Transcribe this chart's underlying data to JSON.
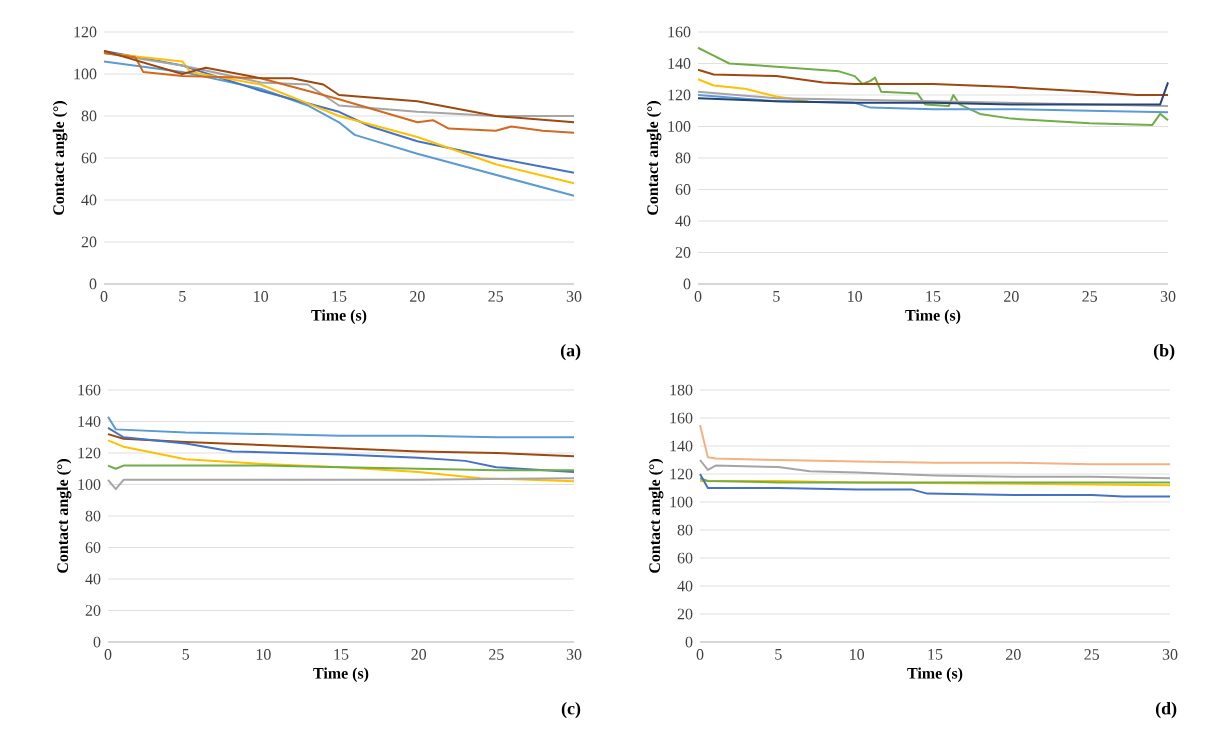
{
  "chart_data": [
    {
      "type": "line",
      "xlabel": "Time (s)",
      "ylabel": "Contact angle (°)",
      "annotations": [
        "(a)"
      ],
      "xlim": [
        0,
        30
      ],
      "ylim": [
        0,
        120
      ],
      "xticks": [
        0,
        5,
        10,
        15,
        20,
        25,
        30
      ],
      "yticks": [
        0,
        20,
        40,
        60,
        80,
        100,
        120
      ],
      "grid": "y",
      "series": [
        {
          "color": "#5b9bd5",
          "x": [
            0,
            5,
            10,
            13,
            15,
            16,
            20,
            25,
            30
          ],
          "values": [
            106,
            101,
            93,
            85,
            77,
            71,
            62,
            52,
            42
          ]
        },
        {
          "color": "#4472c4",
          "x": [
            0,
            5,
            10,
            15,
            17,
            20,
            25,
            30
          ],
          "values": [
            111,
            104,
            92,
            82,
            75,
            68,
            60,
            53
          ]
        },
        {
          "color": "#ffc000",
          "x": [
            0,
            5,
            5.5,
            10,
            13,
            15,
            20,
            25,
            30
          ],
          "values": [
            110,
            106,
            101,
            95,
            86,
            80,
            70,
            57,
            48
          ]
        },
        {
          "color": "#a5a5a5",
          "x": [
            0,
            5,
            10,
            13,
            14,
            15,
            20,
            25,
            30
          ],
          "values": [
            110,
            104,
            96,
            95,
            90,
            85,
            82,
            80,
            80
          ]
        },
        {
          "color": "#d2691e",
          "x": [
            0,
            2,
            2.5,
            5,
            10,
            15,
            20,
            21,
            22,
            25,
            26,
            28,
            30
          ],
          "values": [
            110,
            108,
            101,
            99,
            98,
            88,
            77,
            78,
            74,
            73,
            75,
            73,
            72
          ]
        },
        {
          "color": "#9e480e",
          "x": [
            0,
            5,
            6.5,
            10,
            12,
            14,
            15,
            20,
            25,
            30
          ],
          "values": [
            111,
            100,
            103,
            98,
            98,
            95,
            90,
            87,
            80,
            77
          ]
        }
      ]
    },
    {
      "type": "line",
      "xlabel": "Time (s)",
      "ylabel": "Contact angle (°)",
      "annotations": [
        "(b)"
      ],
      "xlim": [
        0,
        30
      ],
      "ylim": [
        0,
        160
      ],
      "xticks": [
        0,
        5,
        10,
        15,
        20,
        25,
        30
      ],
      "yticks": [
        0,
        20,
        40,
        60,
        80,
        100,
        120,
        140,
        160
      ],
      "grid": "y",
      "series": [
        {
          "color": "#70ad47",
          "x": [
            0,
            1,
            2,
            5,
            9,
            10,
            10.5,
            11,
            11.3,
            11.7,
            14,
            14.5,
            16,
            16.3,
            16.7,
            18,
            20,
            25,
            29,
            29.5,
            30
          ],
          "values": [
            150,
            145,
            140,
            138,
            135,
            132,
            127,
            129,
            131,
            122,
            121,
            114,
            113,
            120,
            114,
            108,
            105,
            102,
            101,
            108,
            104
          ]
        },
        {
          "color": "#9e480e",
          "x": [
            0,
            1,
            5,
            8,
            10,
            15,
            20,
            25,
            28,
            30
          ],
          "values": [
            136,
            133,
            132,
            128,
            127,
            127,
            125,
            122,
            120,
            120
          ]
        },
        {
          "color": "#ffc000",
          "x": [
            0,
            1,
            3,
            5,
            7
          ],
          "values": [
            130,
            126,
            124,
            119,
            116
          ]
        },
        {
          "color": "#a5a5a5",
          "x": [
            0,
            5,
            15,
            30
          ],
          "values": [
            122,
            118,
            116,
            113
          ]
        },
        {
          "color": "#5b9bd5",
          "x": [
            0,
            5,
            10,
            11,
            15,
            20,
            25,
            30
          ],
          "values": [
            120,
            116,
            115,
            112,
            111,
            111,
            110,
            109
          ]
        },
        {
          "color": "#264478",
          "x": [
            0,
            5,
            10,
            15,
            20,
            29.5,
            30
          ],
          "values": [
            118,
            116,
            115,
            115,
            114,
            114,
            128
          ]
        }
      ]
    },
    {
      "type": "line",
      "xlabel": "Time (s)",
      "ylabel": "Contact angle (°)",
      "annotations": [
        "(c)"
      ],
      "xlim": [
        0,
        30
      ],
      "ylim": [
        0,
        160
      ],
      "xticks": [
        0,
        5,
        10,
        15,
        20,
        25,
        30
      ],
      "yticks": [
        0,
        20,
        40,
        60,
        80,
        100,
        120,
        140,
        160
      ],
      "grid": "y",
      "series": [
        {
          "color": "#5b9bd5",
          "x": [
            0,
            0.5,
            5,
            10,
            15,
            20,
            25,
            30
          ],
          "values": [
            143,
            135,
            133,
            132,
            131,
            131,
            130,
            130
          ]
        },
        {
          "color": "#9e480e",
          "x": [
            0,
            1,
            5,
            10,
            15,
            20,
            25,
            30
          ],
          "values": [
            132,
            129,
            127,
            125,
            123,
            121,
            120,
            118
          ]
        },
        {
          "color": "#4472c4",
          "x": [
            0,
            1,
            5,
            8,
            15,
            20,
            23,
            25,
            30
          ],
          "values": [
            136,
            130,
            126,
            121,
            119,
            117,
            115,
            111,
            108
          ]
        },
        {
          "color": "#ffc000",
          "x": [
            0,
            1,
            3,
            5,
            10,
            15,
            20,
            24,
            30
          ],
          "values": [
            128,
            124,
            120,
            116,
            113,
            111,
            108,
            104,
            102
          ]
        },
        {
          "color": "#70ad47",
          "x": [
            0,
            0.5,
            1,
            5,
            10,
            15,
            20,
            25,
            30
          ],
          "values": [
            112,
            110,
            112,
            112,
            112,
            111,
            110,
            109,
            109
          ]
        },
        {
          "color": "#a5a5a5",
          "x": [
            0,
            0.5,
            1,
            5,
            10,
            20,
            30
          ],
          "values": [
            103,
            97,
            103,
            103,
            103,
            103,
            104
          ]
        }
      ]
    },
    {
      "type": "line",
      "xlabel": "Time (s)",
      "ylabel": "Contact angle (°)",
      "annotations": [
        "(d)"
      ],
      "xlim": [
        0,
        30
      ],
      "ylim": [
        0,
        180
      ],
      "xticks": [
        0,
        5,
        10,
        15,
        20,
        25,
        30
      ],
      "yticks": [
        0,
        20,
        40,
        60,
        80,
        100,
        120,
        140,
        160,
        180
      ],
      "grid": "y",
      "series": [
        {
          "color": "#f4b183",
          "x": [
            0,
            0.5,
            1,
            5,
            10,
            15,
            20,
            25,
            30
          ],
          "values": [
            155,
            132,
            131,
            130,
            129,
            128,
            128,
            127,
            127
          ]
        },
        {
          "color": "#a5a5a5",
          "x": [
            0,
            0.5,
            1,
            5,
            7,
            10,
            15,
            20,
            25,
            30
          ],
          "values": [
            130,
            123,
            126,
            125,
            122,
            121,
            119,
            118,
            118,
            117
          ]
        },
        {
          "color": "#ffc000",
          "x": [
            0,
            5,
            10,
            20,
            30
          ],
          "values": [
            115,
            115,
            114,
            113,
            112
          ]
        },
        {
          "color": "#70ad47",
          "x": [
            0,
            0.5,
            5,
            10,
            20,
            30
          ],
          "values": [
            117,
            115,
            114,
            114,
            114,
            114
          ]
        },
        {
          "color": "#4472c4",
          "x": [
            0,
            0.5,
            5,
            10,
            13.5,
            14.5,
            20,
            25,
            27,
            30
          ],
          "values": [
            120,
            110,
            110,
            109,
            109,
            106,
            105,
            105,
            104,
            104
          ]
        }
      ]
    }
  ]
}
